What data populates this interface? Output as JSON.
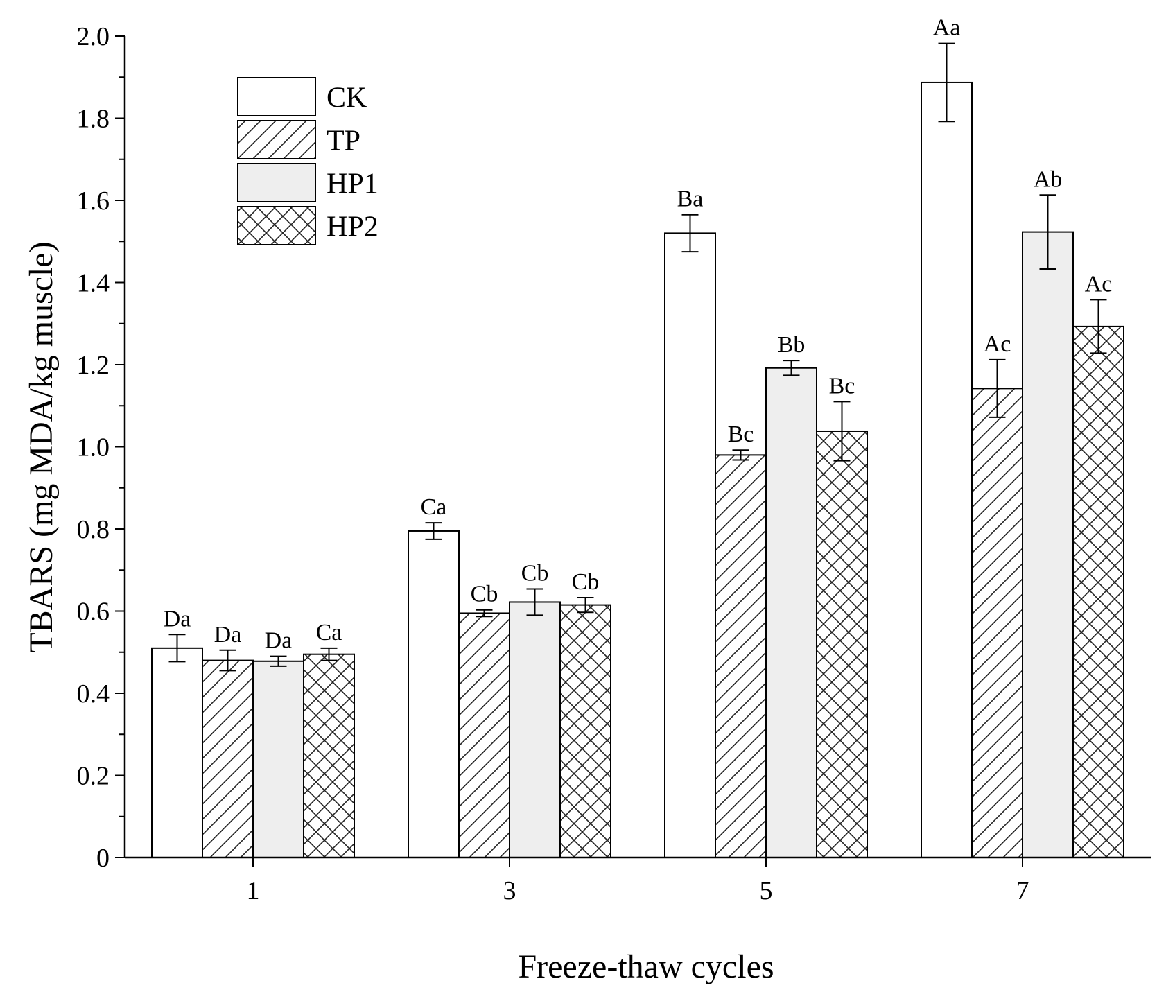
{
  "chart_data": {
    "type": "bar",
    "title": "",
    "xlabel": "Freeze-thaw cycles",
    "ylabel": "TBARS (mg MDA/kg muscle)",
    "ylim": [
      0,
      2.0
    ],
    "yticks": [
      "0",
      "0.2",
      "0.4",
      "0.6",
      "0.8",
      "1.0",
      "1.2",
      "1.4",
      "1.6",
      "1.8",
      "2.0"
    ],
    "categories": [
      "1",
      "3",
      "5",
      "7"
    ],
    "legend_position": "top-left",
    "series": [
      {
        "name": "CK",
        "pattern": "white",
        "values": [
          0.51,
          0.795,
          1.52,
          1.887
        ],
        "errors": [
          0.033,
          0.02,
          0.045,
          0.095
        ],
        "labels": [
          "Da",
          "Ca",
          "Ba",
          "Aa"
        ]
      },
      {
        "name": "TP",
        "pattern": "diagonal-hatch",
        "values": [
          0.48,
          0.595,
          0.98,
          1.142
        ],
        "errors": [
          0.025,
          0.008,
          0.012,
          0.07
        ],
        "labels": [
          "Da",
          "Cb",
          "Bc",
          "Ac"
        ]
      },
      {
        "name": "HP1",
        "pattern": "light-gray",
        "values": [
          0.478,
          0.622,
          1.192,
          1.523
        ],
        "errors": [
          0.012,
          0.032,
          0.018,
          0.09
        ],
        "labels": [
          "Da",
          "Cb",
          "Bb",
          "Ab"
        ]
      },
      {
        "name": "HP2",
        "pattern": "cross-hatch",
        "values": [
          0.495,
          0.615,
          1.038,
          1.293
        ],
        "errors": [
          0.015,
          0.018,
          0.072,
          0.065
        ],
        "labels": [
          "Ca",
          "Cb",
          "Bc",
          "Ac"
        ]
      }
    ]
  }
}
